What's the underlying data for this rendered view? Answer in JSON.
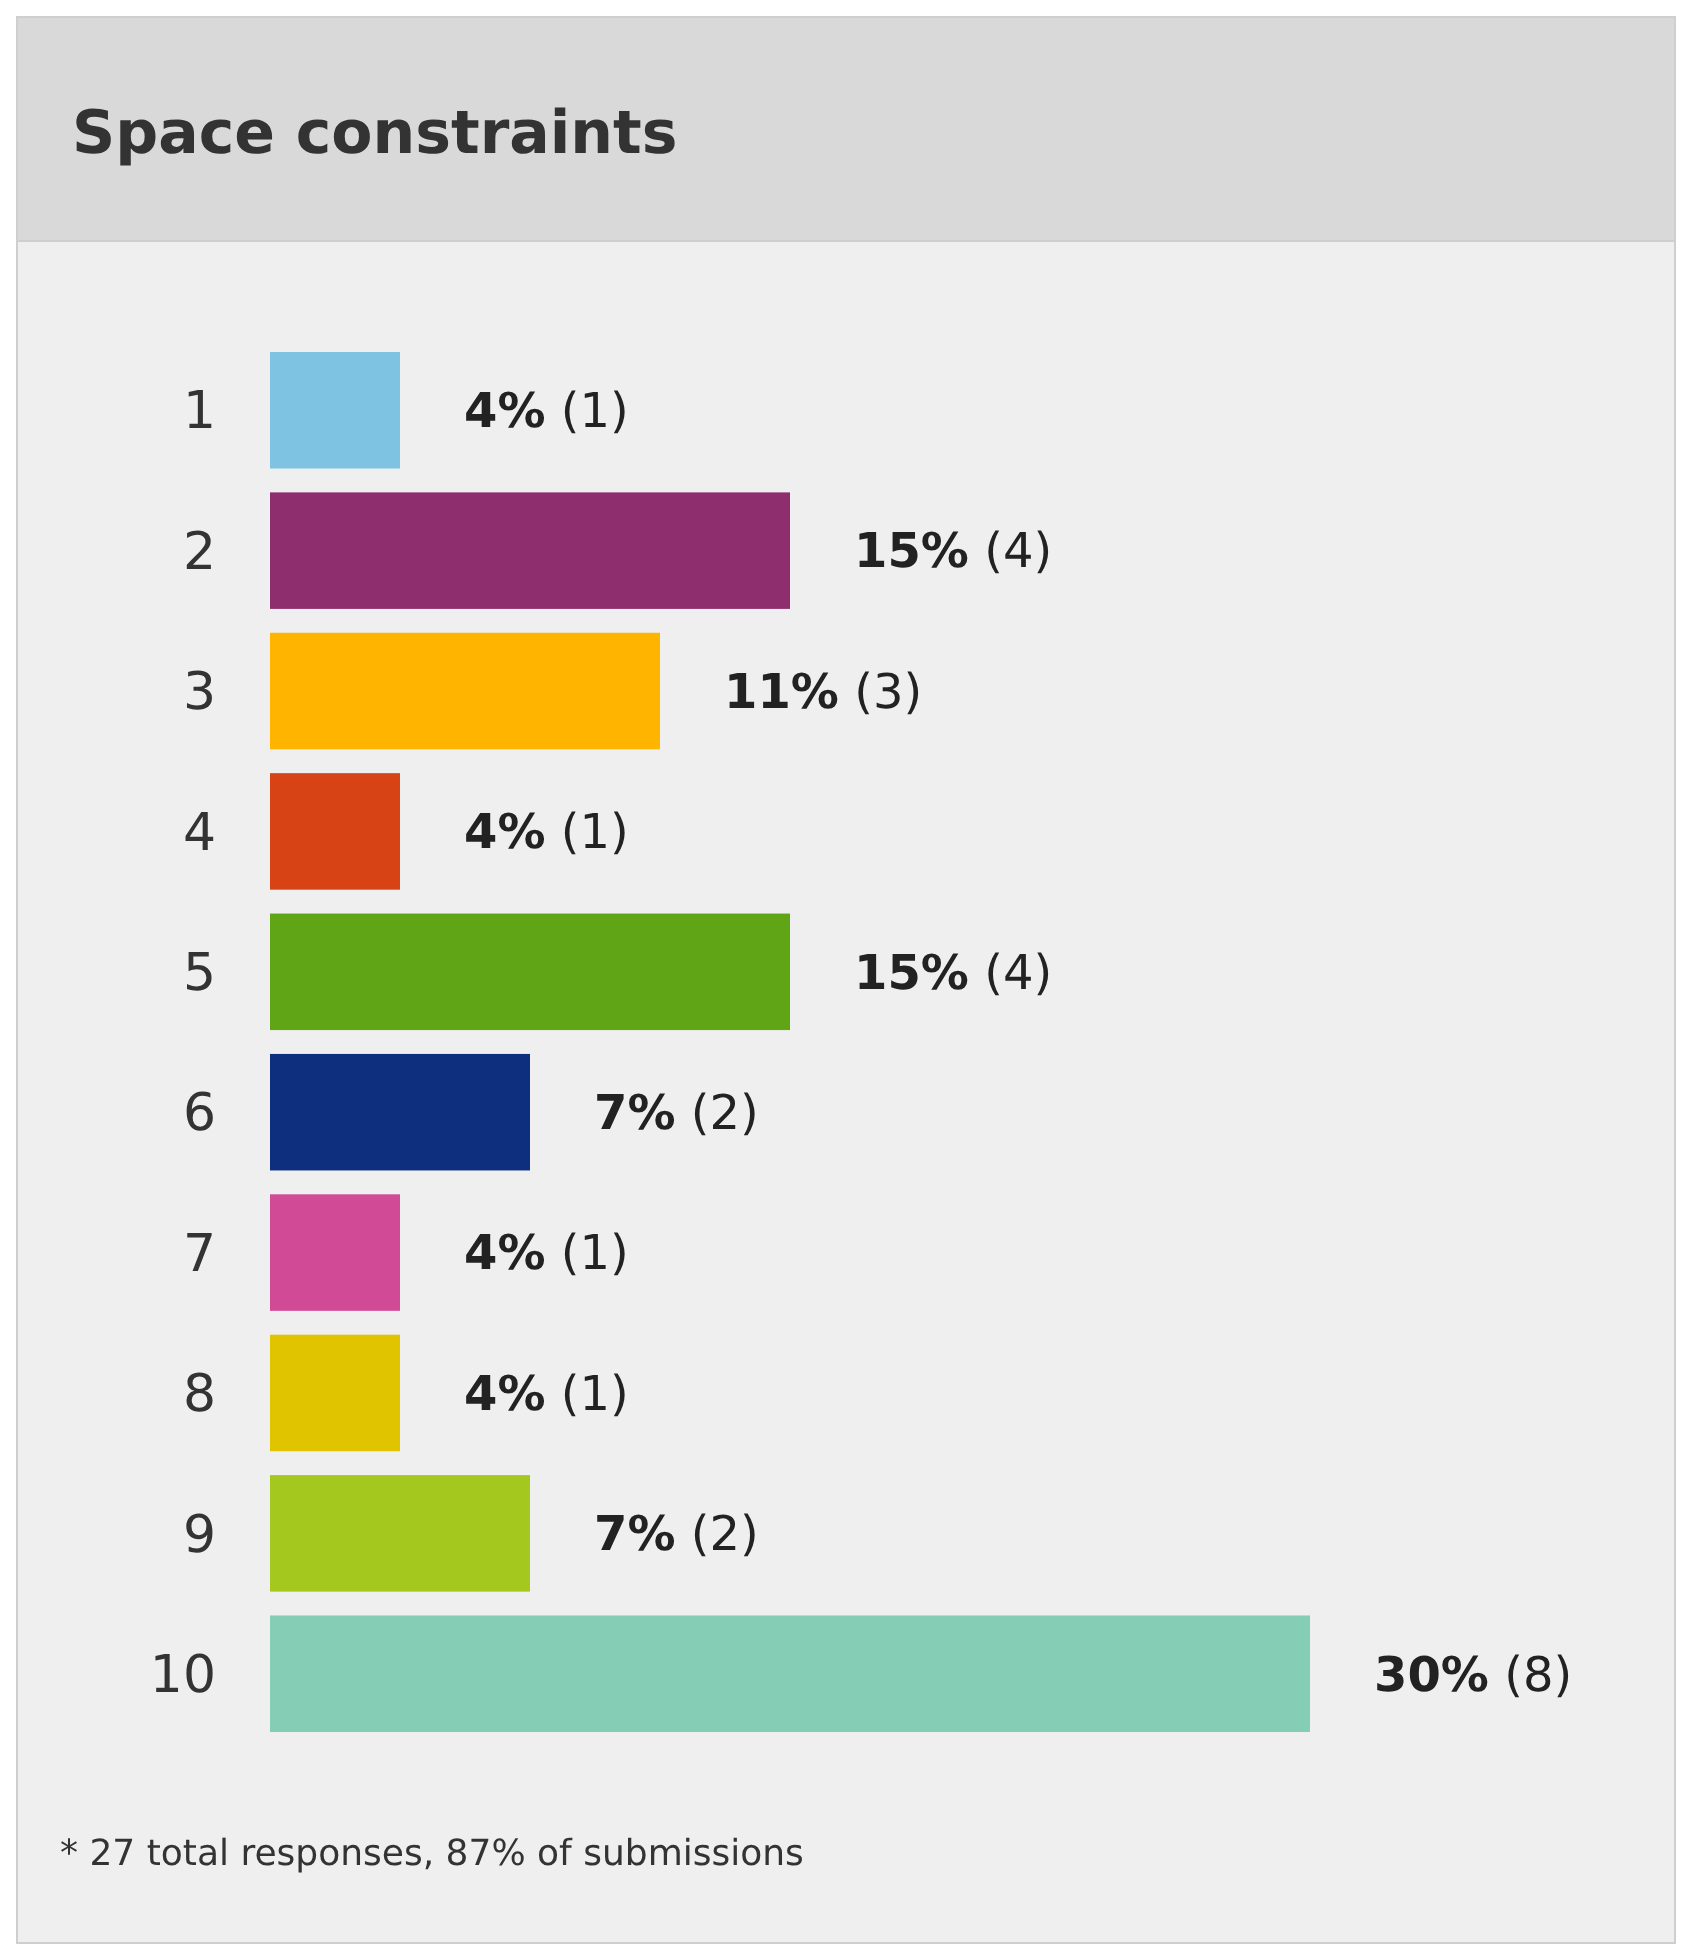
{
  "chart_data": {
    "type": "bar",
    "orientation": "horizontal",
    "title": "Space constraints",
    "categories": [
      "1",
      "2",
      "3",
      "4",
      "5",
      "6",
      "7",
      "8",
      "9",
      "10"
    ],
    "values": [
      1,
      4,
      3,
      1,
      4,
      2,
      1,
      1,
      2,
      8
    ],
    "value_labels": [
      "4% (1)",
      "15% (4)",
      "11% (3)",
      "4% (1)",
      "15% (4)",
      "7% (2)",
      "4% (1)",
      "4% (1)",
      "7% (2)",
      "30% (8)"
    ],
    "colors": [
      "#7ec4e2",
      "#8e2e6e",
      "#ffb400",
      "#d84315",
      "#5fa516",
      "#0d2f7d",
      "#d04a95",
      "#e0c400",
      "#a4c81e",
      "#86cdb5"
    ],
    "annotations": [
      "* 27 total responses, 87% of submissions"
    ]
  }
}
